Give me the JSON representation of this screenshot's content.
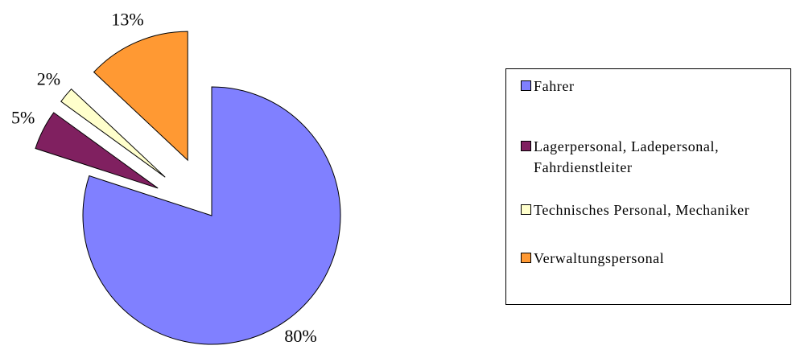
{
  "chart_data": {
    "type": "pie",
    "categories": [
      "Fahrer",
      "Lagerpersonal, Ladepersonal, Fahrdienstleiter",
      "Technisches Personal, Mechaniker",
      "Verwaltungspersonal"
    ],
    "values": [
      80,
      5,
      2,
      13
    ],
    "value_labels": [
      "80%",
      "5%",
      "2%",
      "13%"
    ],
    "colors": [
      "#8080ff",
      "#802060",
      "#ffffcc",
      "#ff9933"
    ],
    "exploded": [
      false,
      true,
      true,
      true
    ],
    "legend": "right"
  }
}
